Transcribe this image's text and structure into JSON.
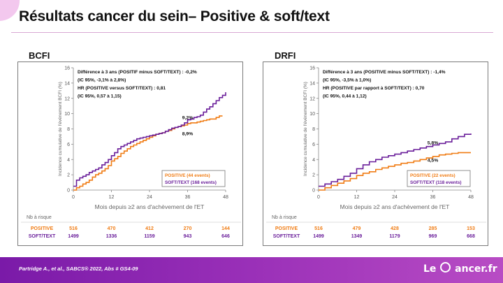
{
  "slide": {
    "title": "Résultats cancer du sein– Positive & soft/text",
    "reference": "Partridge A., et al., SABCS® 2022, Abs # GS4-09",
    "logo": {
      "prefix": "Le",
      "suffix": "ancer.fr",
      "icon": "c-ring-icon"
    }
  },
  "colors": {
    "positive": "#f07c14",
    "softtext": "#6a1e9a",
    "accent": "#9a30b8"
  },
  "chart_data": [
    {
      "type": "line",
      "panel_label": "BCFI",
      "ylabel": "Incidence cumulative de l'évènement BCFI (%)",
      "xlabel": "Mois depuis ≥2 ans d'achèvement de l'ET",
      "xlim": [
        0,
        48
      ],
      "ylim": [
        0,
        16
      ],
      "xticks": [
        0,
        12,
        24,
        36,
        48
      ],
      "yticks": [
        0,
        2,
        4,
        6,
        8,
        10,
        12,
        14,
        16
      ],
      "annotation": [
        "Différence à 3 ans (POSITIF minus SOFT/TEXT) : -0,2%",
        "(IC 95%, -3,1% à 2,8%)",
        "HR (POSITIVE versus SOFT/TEXT) : 0,81",
        "(IC 95%, 0,57 à 1,15)"
      ],
      "point_labels": [
        {
          "text": "9,2%",
          "x": 36,
          "y": 9.3
        },
        {
          "text": "8,9%",
          "x": 36,
          "y": 7.2
        }
      ],
      "legend": [
        "POSITIVE (44 events)",
        "SOFT/TEXT (168 events)"
      ],
      "series": [
        {
          "name": "POSITIVE (44 events)",
          "color_key": "positive",
          "x": [
            0,
            1,
            2,
            3,
            4,
            5,
            6,
            7,
            8,
            9,
            10,
            11,
            12,
            13,
            14,
            15,
            16,
            17,
            18,
            19,
            20,
            21,
            22,
            23,
            24,
            25,
            26,
            27,
            28,
            29,
            30,
            31,
            32,
            33,
            34,
            35,
            36,
            37,
            38,
            39,
            40,
            41,
            42,
            43,
            44,
            45,
            46,
            47
          ],
          "y": [
            0,
            0.3,
            0.5,
            0.8,
            1.0,
            1.3,
            1.7,
            2.0,
            2.2,
            2.5,
            2.8,
            3.2,
            3.8,
            4.1,
            4.4,
            4.8,
            5.1,
            5.4,
            5.7,
            5.9,
            6.1,
            6.3,
            6.5,
            6.7,
            6.9,
            7.1,
            7.3,
            7.4,
            7.5,
            7.7,
            7.8,
            8.0,
            8.2,
            8.3,
            8.4,
            8.5,
            8.7,
            8.8,
            8.8,
            8.9,
            9.0,
            9.1,
            9.2,
            9.3,
            9.3,
            9.5,
            9.7,
            9.7
          ]
        },
        {
          "name": "SOFT/TEXT (168 events)",
          "color_key": "softtext",
          "x": [
            0,
            1,
            2,
            3,
            4,
            5,
            6,
            7,
            8,
            9,
            10,
            11,
            12,
            13,
            14,
            15,
            16,
            17,
            18,
            19,
            20,
            21,
            22,
            23,
            24,
            25,
            26,
            27,
            28,
            29,
            30,
            31,
            32,
            33,
            34,
            35,
            36,
            37,
            38,
            39,
            40,
            41,
            42,
            43,
            44,
            45,
            46,
            47,
            48
          ],
          "y": [
            0.5,
            1.3,
            1.6,
            1.8,
            2.0,
            2.3,
            2.5,
            2.7,
            2.9,
            3.3,
            3.6,
            4.0,
            4.5,
            4.9,
            5.4,
            5.7,
            5.9,
            6.1,
            6.3,
            6.5,
            6.7,
            6.8,
            6.9,
            7.0,
            7.1,
            7.2,
            7.3,
            7.4,
            7.5,
            7.7,
            7.9,
            8.1,
            8.2,
            8.3,
            8.5,
            8.8,
            9.2,
            9.3,
            9.5,
            9.6,
            9.8,
            10.2,
            10.6,
            10.9,
            11.3,
            11.7,
            12.1,
            12.4,
            12.8
          ]
        }
      ],
      "risk_table": {
        "heading": "Nb à risque",
        "rows": [
          {
            "label": "POSITIVE",
            "color_key": "positive",
            "values": [
              "516",
              "470",
              "412",
              "270",
              "144"
            ]
          },
          {
            "label": "SOFT/TEXT",
            "color_key": "softtext",
            "values": [
              "1499",
              "1336",
              "1159",
              "943",
              "646"
            ]
          }
        ]
      }
    },
    {
      "type": "line",
      "panel_label": "DRFI",
      "ylabel": "Incidence cumulative de l'évènement BCFI (%)",
      "xlabel": "Mois depuis ≥2 ans d'achèvement de l'ET",
      "xlim": [
        0,
        48
      ],
      "ylim": [
        0,
        16
      ],
      "xticks": [
        0,
        12,
        24,
        36,
        48
      ],
      "yticks": [
        0,
        2,
        4,
        6,
        8,
        10,
        12,
        14,
        16
      ],
      "annotation": [
        "Différence à 3 ans (POSITIVE minus SOFT/TEXT) : -1,4%",
        "(IC 95%, -3,5% à 1,0%)",
        "HR (POSITIVE par rapport à SOFT/TEXT) : 0,70",
        "(IC 95%, 0,44 à 1,12)"
      ],
      "point_labels": [
        {
          "text": "5,8%",
          "x": 36,
          "y": 6.0
        },
        {
          "text": "4,5%",
          "x": 36,
          "y": 3.7
        }
      ],
      "legend": [
        "POSITIVE (22 events)",
        "SOFT/TEXT (118 events)"
      ],
      "series": [
        {
          "name": "POSITIVE (22 events)",
          "color_key": "positive",
          "x": [
            0,
            2,
            4,
            6,
            8,
            10,
            12,
            14,
            16,
            18,
            20,
            22,
            24,
            26,
            28,
            30,
            32,
            34,
            36,
            38,
            40,
            42,
            44,
            46,
            48
          ],
          "y": [
            0,
            0.3,
            0.6,
            0.9,
            1.2,
            1.5,
            1.9,
            2.2,
            2.4,
            2.7,
            2.9,
            3.1,
            3.3,
            3.5,
            3.6,
            3.8,
            4.0,
            4.2,
            4.4,
            4.6,
            4.7,
            4.8,
            4.9,
            4.9,
            4.9
          ]
        },
        {
          "name": "SOFT/TEXT (118 events)",
          "color_key": "softtext",
          "x": [
            0,
            2,
            4,
            6,
            8,
            10,
            12,
            14,
            16,
            18,
            20,
            22,
            24,
            26,
            28,
            30,
            32,
            34,
            36,
            38,
            40,
            42,
            44,
            46,
            48
          ],
          "y": [
            0.5,
            0.8,
            1.1,
            1.4,
            1.8,
            2.2,
            2.8,
            3.3,
            3.7,
            4.0,
            4.3,
            4.5,
            4.7,
            4.9,
            5.1,
            5.3,
            5.5,
            5.7,
            5.9,
            6.1,
            6.3,
            6.7,
            7.0,
            7.3,
            7.4
          ]
        }
      ],
      "risk_table": {
        "heading": "Nb à risque",
        "rows": [
          {
            "label": "POSITIVE",
            "color_key": "positive",
            "values": [
              "516",
              "479",
              "428",
              "285",
              "153"
            ]
          },
          {
            "label": "SOFT/TEXT",
            "color_key": "softtext",
            "values": [
              "1499",
              "1349",
              "1179",
              "969",
              "668"
            ]
          }
        ]
      }
    }
  ]
}
